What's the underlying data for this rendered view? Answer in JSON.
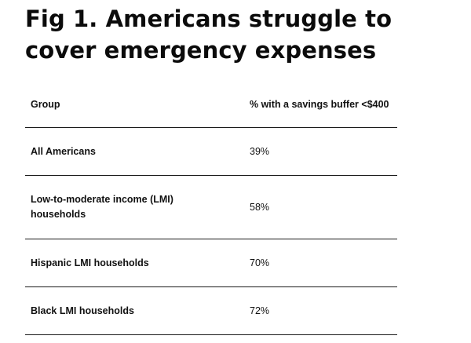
{
  "chart_data": {
    "type": "table",
    "title": "Fig 1. Americans struggle to cover emergency expenses",
    "columns": [
      "Group",
      "% with a savings buffer <$400"
    ],
    "rows": [
      {
        "group": "All Americans",
        "value": "39%"
      },
      {
        "group": "Low-to-moderate income (LMI) households",
        "value": "58%"
      },
      {
        "group": "Hispanic LMI households",
        "value": "70%"
      },
      {
        "group": "Black LMI households",
        "value": "72%"
      }
    ]
  }
}
